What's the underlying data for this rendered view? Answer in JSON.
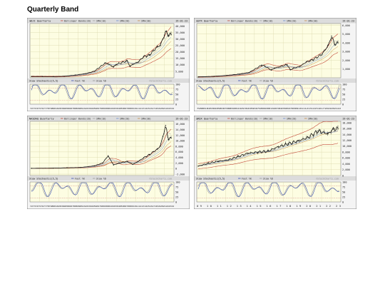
{
  "page": {
    "title": "Quarterly Band"
  },
  "colors": {
    "plot_bg": "#fdfde2",
    "header_bg": "#dcdcdc",
    "price": "#1a1a1a",
    "upper_band": "#c44a3a",
    "lower_band": "#2f5fb5",
    "sma10": "#a6a6a6",
    "sma20": "#6f8fd0",
    "sma30": "#c88f4a",
    "fast_k": "#3a4fb0",
    "slow_d": "#9a9a9a",
    "grid": "#d8d5a8",
    "frame": "#6f6f6f",
    "level_line": "#c77"
  },
  "chart_data": [
    {
      "type": "line",
      "panel": "tl",
      "header": "$DJI Quarterly",
      "legend": [
        "Bollinger Bands(20)",
        "SMA(10)",
        "SMA(20)",
        "SMA(30)"
      ],
      "date": "19-01-23",
      "yticks": [
        "40,000",
        "35,000",
        "30,000",
        "25,000",
        "20,000",
        "15,000",
        "10,000",
        "5,000"
      ],
      "ylim": [
        0,
        42000
      ],
      "indicator": {
        "label": "Slow Stochastic(5,5)",
        "fast": "Fast %K",
        "slow": "Slow %D",
        "yticks": [
          "100",
          "75",
          "50",
          "25",
          "0"
        ]
      },
      "watermark": "©StockCharts.com",
      "xticks": "7273747576777879808182838485868788899091929394959697989900010203040506070809101112131415161718192021222324",
      "x": [
        1972,
        1976,
        1980,
        1984,
        1988,
        1992,
        1995,
        1999,
        2000,
        2002,
        2003,
        2007,
        2008,
        2009,
        2011,
        2013,
        2015,
        2018,
        2019,
        2020,
        2021,
        2022,
        2023
      ],
      "values": [
        1000,
        1000,
        900,
        1200,
        2100,
        3300,
        5100,
        11500,
        10800,
        8300,
        10400,
        13200,
        8800,
        10400,
        12200,
        16500,
        17500,
        24000,
        25000,
        30000,
        36000,
        33000,
        33500
      ]
    },
    {
      "type": "line",
      "panel": "tr",
      "header": "$SPX Quarterly",
      "legend": [
        "Bollinger Bands(20)",
        "SMA(10)",
        "SMA(20)",
        "SMA(30)"
      ],
      "date": "19-01-23",
      "yticks": [
        "6,000",
        "5,000",
        "4,000",
        "3,000",
        "2,000",
        "1,000"
      ],
      "ylim": [
        0,
        6200
      ],
      "indicator": {
        "label": "Slow Stochastic(5,5)",
        "fast": "Fast %K",
        "slow": "Slow %D",
        "yticks": [
          "100",
          "75",
          "50",
          "25",
          "0"
        ]
      },
      "watermark": "©StockCharts.com",
      "xticks": "7980818283848586878889909192939495969798990001020304050607080910111213141516171819202122",
      "x": [
        1979,
        1984,
        1988,
        1992,
        1995,
        1999,
        2000,
        2002,
        2003,
        2007,
        2008,
        2009,
        2011,
        2013,
        2015,
        2018,
        2019,
        2020,
        2021,
        2022,
        2023
      ],
      "values": [
        100,
        165,
        270,
        420,
        600,
        1450,
        1330,
        880,
        1100,
        1500,
        900,
        1100,
        1300,
        1800,
        2050,
        2700,
        3200,
        3750,
        4760,
        3800,
        4000
      ]
    },
    {
      "type": "line",
      "panel": "bl",
      "header": "NASDAQ Quarterly",
      "legend": [
        "Bollinger Bands(20)",
        "SMA(10)",
        "SMA(20)",
        "SMA(30)"
      ],
      "date": "19-01-23",
      "yticks": [
        "16,000",
        "14,000",
        "12,000",
        "10,000",
        "8,000",
        "6,000",
        "4,000",
        "2,000",
        "0",
        "-2,000"
      ],
      "ylim": [
        -2500,
        17000
      ],
      "indicator": {
        "label": "Slow Stochastic(5,5)",
        "fast": "Fast %K",
        "slow": "Slow %D",
        "yticks": [
          "100",
          "75",
          "50",
          "25",
          "0"
        ]
      },
      "watermark": "©StockCharts.com",
      "xticks": "7273747576777879808182838485868788899091929394959697989900010203040506070809101112131415161718192021222324",
      "x": [
        1972,
        1980,
        1985,
        1990,
        1995,
        1998,
        2000,
        2002,
        2004,
        2007,
        2009,
        2011,
        2013,
        2015,
        2018,
        2019,
        2020,
        2021,
        2022,
        2023
      ],
      "values": [
        100,
        150,
        300,
        400,
        1000,
        2000,
        4600,
        1300,
        2000,
        2600,
        1500,
        2600,
        3900,
        5000,
        7000,
        8000,
        11500,
        15500,
        10500,
        11000
      ]
    },
    {
      "type": "line",
      "panel": "br",
      "header": "$RDX Quarterly",
      "legend": [
        "Bollinger Bands(20)",
        "SMA(10)",
        "SMA(20)",
        "SMA(30)"
      ],
      "date": "19-01-23",
      "yticks": [
        "18,000",
        "16,000",
        "14,000",
        "12,000",
        "10,000",
        "8,000",
        "6,000",
        "4,000",
        "2,000",
        "0"
      ],
      "ylim": [
        0,
        18500
      ],
      "indicator": {
        "label": "Slow Stochastic(5,5)",
        "fast": "Fast %K",
        "slow": "Slow %D",
        "yticks": [
          "100",
          "75",
          "50",
          "25",
          "0"
        ]
      },
      "watermark": "©StockCharts.com",
      "xticks": "09 10 11 12 13 14 15 16 17 18 19 20 21 22 23",
      "x": [
        2009,
        2010,
        2011,
        2012,
        2013,
        2014,
        2015,
        2016,
        2017,
        2018,
        2019,
        2020,
        2021,
        2022,
        2022.5,
        2023
      ],
      "values": [
        3200,
        4200,
        4900,
        5300,
        6500,
        7600,
        8000,
        8300,
        9800,
        10800,
        11800,
        13000,
        15200,
        14200,
        15800,
        16000
      ]
    }
  ]
}
